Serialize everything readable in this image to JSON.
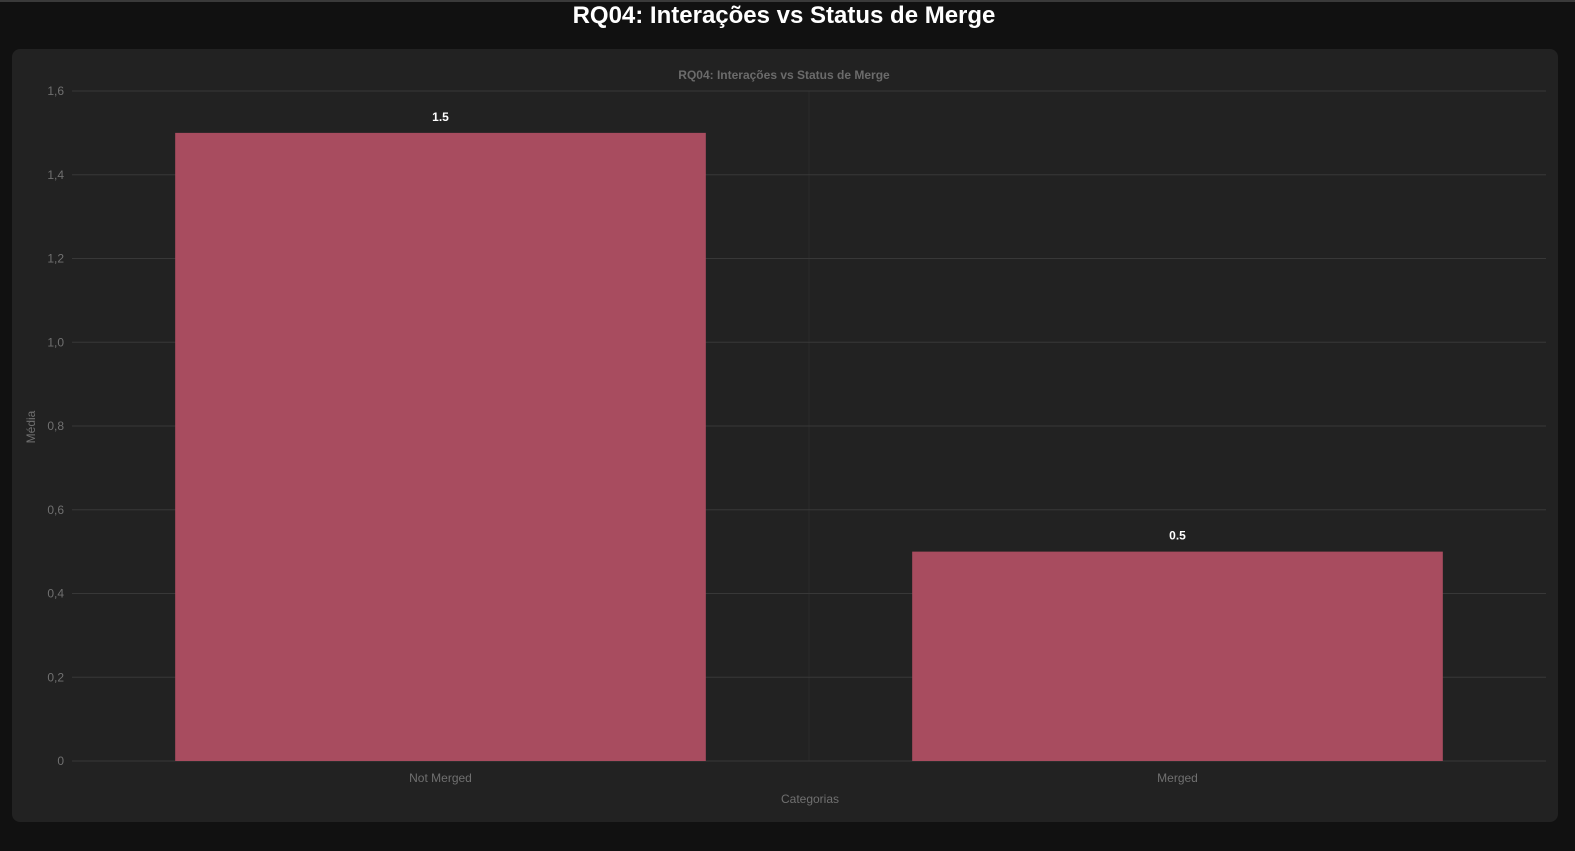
{
  "page": {
    "title": "RQ04: Interações vs Status de Merge"
  },
  "colors": {
    "background": "#111111",
    "card": "#222222",
    "bar": "#a84c5f",
    "grid": "#383838",
    "text_muted": "#707070"
  },
  "chart_data": {
    "type": "bar",
    "title": "RQ04: Interações vs Status de Merge",
    "xlabel": "Categorias",
    "ylabel": "Média",
    "categories": [
      "Not Merged",
      "Merged"
    ],
    "values": [
      1.5,
      0.5
    ],
    "value_labels": [
      "1.5",
      "0.5"
    ],
    "ylim": [
      0,
      1.6
    ],
    "yticks": [
      0,
      0.2,
      0.4,
      0.6,
      0.8,
      1.0,
      1.2,
      1.4,
      1.6
    ],
    "ytick_labels": [
      "0",
      "0,2",
      "0,4",
      "0,6",
      "0,8",
      "1,0",
      "1,2",
      "1,4",
      "1,6"
    ],
    "grid": true,
    "legend": "none"
  }
}
